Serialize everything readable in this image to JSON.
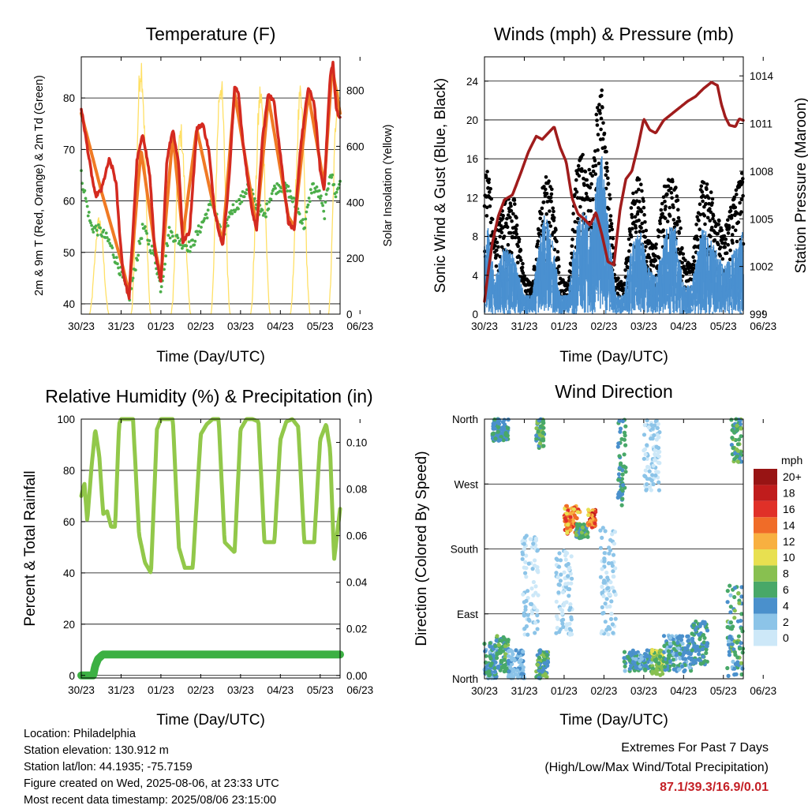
{
  "panels": {
    "temperature": {
      "title": "Temperature (F)",
      "ylabel_left": "2m & 9m T (Red, Orange) & 2m Td (Green)",
      "ylabel_right": "Solar Insolation (Yellow)",
      "xlabel": "Time (Day/UTC)"
    },
    "winds": {
      "title": "Winds (mph) & Pressure (mb)",
      "ylabel_left": "Sonic Wind & Gust (Blue, Black)",
      "ylabel_right": "Station Pressure (Maroon)",
      "xlabel": "Time (Day/UTC)"
    },
    "humidity": {
      "title": "Relative Humidity (%) & Precipitation (in)",
      "ylabel_left": "Percent & Total Rainfall",
      "xlabel": "Time (Day/UTC)"
    },
    "direction": {
      "title": "Wind Direction",
      "ylabel_left": "Direction (Colored By Speed)",
      "xlabel": "Time (Day/UTC)",
      "legend_title": "mph"
    }
  },
  "info": {
    "location": "Location: Philadelphia",
    "elevation": "Station elevation: 130.912 m",
    "latlon": "Station lat/lon: 44.1935; -75.7159",
    "created": "Figure created on Wed, 2025-08-06, at 23:33 UTC",
    "recent": "Most recent data timestamp: 2025/08/06 23:15:00"
  },
  "extremes": {
    "heading": "Extremes For Past 7 Days",
    "subheading": "(High/Low/Max Wind/Total Precipitation)",
    "values": "87.1/39.3/16.9/0.01"
  },
  "colors": {
    "temp2m": "#d42a20",
    "temp9m": "#f07a24",
    "dewpoint": "#4cae4a",
    "insolation": "#ffe066",
    "gust": "#000000",
    "wind": "#4a90d0",
    "pressure": "#a01c1c",
    "rh": "#92c84a",
    "precip": "#3cb043",
    "speed_scale": [
      "#cde8f8",
      "#8cc4e8",
      "#4a90cc",
      "#48a868",
      "#88c050",
      "#e8e050",
      "#f8b040",
      "#f06c28",
      "#e03028",
      "#c01c1c",
      "#981414"
    ]
  },
  "chart_data": [
    {
      "type": "line",
      "name": "temperature",
      "x_tick_labels": [
        "30/23",
        "31/23",
        "01/23",
        "02/23",
        "03/23",
        "04/23",
        "05/23",
        "06/23"
      ],
      "x_range_days": [
        0,
        6.5
      ],
      "y_left": {
        "range": [
          38,
          88
        ],
        "ticks": [
          40,
          50,
          60,
          70,
          80
        ]
      },
      "y_right": {
        "range": [
          0,
          920
        ],
        "ticks": [
          0,
          200,
          400,
          600,
          800
        ]
      },
      "series": [
        {
          "role": "2m T",
          "color_key": "temp2m",
          "axis": "left",
          "x": [
            0,
            0.12,
            0.22,
            0.35,
            0.5,
            0.7,
            0.8,
            0.88,
            0.95,
            1.05,
            1.2,
            1.4,
            1.55,
            1.72,
            1.85,
            2.0,
            2.15,
            2.3,
            2.45,
            2.55,
            2.72,
            2.9,
            3.05,
            3.2,
            3.35,
            3.55,
            3.7,
            3.85,
            3.95,
            4.05,
            4.25,
            4.4,
            4.55,
            4.7,
            4.85,
            5.0,
            5.2,
            5.35,
            5.5,
            5.7,
            5.85,
            6.0,
            6.1,
            6.2,
            6.25,
            6.32,
            6.4,
            6.5
          ],
          "y": [
            78,
            72,
            67,
            61,
            62,
            68,
            66,
            63,
            55,
            46,
            41,
            68,
            73,
            65,
            50,
            44,
            68,
            74,
            67,
            52,
            54,
            74,
            75,
            70,
            58,
            51,
            63,
            82,
            81,
            72,
            60,
            54,
            72,
            81,
            79,
            69,
            56,
            54,
            70,
            82,
            79,
            66,
            62,
            77,
            84,
            87,
            78,
            76
          ]
        },
        {
          "role": "9m T",
          "color_key": "temp9m",
          "axis": "left",
          "x": [
            0,
            0.5,
            1.05,
            1.2,
            1.5,
            1.85,
            2.0,
            2.3,
            2.55,
            2.9,
            3.35,
            3.55,
            3.85,
            4.4,
            4.7,
            5.2,
            5.35,
            5.7,
            6.1,
            6.3,
            6.5
          ],
          "y": [
            77,
            62,
            47,
            42,
            70,
            51,
            45,
            73,
            53,
            74,
            58,
            52,
            81,
            55,
            80,
            57,
            55,
            81,
            63,
            86,
            77
          ]
        },
        {
          "role": "2m Td",
          "color_key": "dewpoint",
          "axis": "left",
          "x": [
            0,
            0.12,
            0.25,
            0.5,
            0.7,
            1.0,
            1.2,
            1.35,
            1.55,
            1.7,
            1.85,
            2.0,
            2.2,
            2.5,
            2.75,
            3.0,
            3.3,
            3.55,
            3.75,
            4.0,
            4.2,
            4.4,
            4.6,
            4.8,
            5.0,
            5.2,
            5.45,
            5.6,
            5.8,
            6.0,
            6.1,
            6.25,
            6.4,
            6.5
          ],
          "y": [
            65,
            60,
            55,
            54,
            52,
            46,
            41,
            47,
            55,
            52,
            49,
            43,
            54,
            52,
            51,
            55,
            60,
            52,
            58,
            60,
            63,
            59,
            57,
            62,
            63,
            62,
            58,
            55,
            63,
            61,
            57,
            66,
            61,
            64
          ]
        },
        {
          "role": "Solar Insolation",
          "color_key": "insolation",
          "axis": "right",
          "peaks_x": [
            0.45,
            1.5,
            2.5,
            3.5,
            4.5,
            5.5,
            6.45
          ],
          "peaks_y": [
            330,
            880,
            640,
            820,
            780,
            760,
            800
          ]
        }
      ]
    },
    {
      "type": "scatter",
      "name": "winds",
      "x_tick_labels": [
        "30/23",
        "31/23",
        "01/23",
        "02/23",
        "03/23",
        "04/23",
        "05/23",
        "06/23"
      ],
      "x_range_days": [
        0,
        6.5
      ],
      "y_left": {
        "range": [
          0,
          26.5
        ],
        "ticks": [
          0,
          4,
          8,
          12,
          16,
          20,
          24
        ]
      },
      "y_right": {
        "range": [
          999,
          1015.2
        ],
        "ticks": [
          999,
          1002,
          1005,
          1008,
          1011,
          1014
        ]
      },
      "series": [
        {
          "role": "Gust",
          "color_key": "gust",
          "axis": "left",
          "envelope_x": [
            0,
            0.1,
            0.25,
            0.5,
            0.75,
            1.0,
            1.2,
            1.5,
            1.7,
            1.9,
            2.1,
            2.3,
            2.5,
            2.7,
            2.85,
            2.95,
            3.1,
            3.3,
            3.5,
            3.7,
            3.9,
            4.1,
            4.3,
            4.55,
            4.8,
            5.0,
            5.2,
            5.45,
            5.7,
            6.0,
            6.2,
            6.5
          ],
          "envelope_max": [
            14,
            16,
            8,
            12,
            12,
            4,
            3,
            15,
            13,
            4,
            3,
            15,
            17,
            14,
            23,
            24,
            15,
            4,
            3,
            12,
            15,
            8,
            7,
            14,
            14,
            6,
            5,
            14,
            13,
            8,
            12,
            15
          ]
        },
        {
          "role": "Sonic Wind",
          "color_key": "wind",
          "axis": "left",
          "envelope_x": [
            0,
            0.1,
            0.25,
            0.5,
            0.75,
            1.0,
            1.2,
            1.5,
            1.7,
            1.9,
            2.1,
            2.3,
            2.5,
            2.7,
            2.85,
            2.95,
            3.1,
            3.3,
            3.5,
            3.7,
            3.9,
            4.1,
            4.3,
            4.55,
            4.8,
            5.0,
            5.2,
            5.45,
            5.7,
            6.0,
            6.2,
            6.5
          ],
          "envelope_max": [
            8,
            9,
            4,
            7,
            6,
            2,
            2,
            11,
            8,
            2,
            2,
            9,
            11,
            9,
            15,
            17,
            10,
            2,
            2,
            7,
            9,
            5,
            4,
            9,
            9,
            3,
            3,
            9,
            8,
            5,
            6,
            9
          ]
        },
        {
          "role": "Station Pressure",
          "color_key": "pressure",
          "axis": "right",
          "x": [
            0,
            0.1,
            0.2,
            0.35,
            0.5,
            0.7,
            0.9,
            1.1,
            1.3,
            1.45,
            1.6,
            1.75,
            1.9,
            2.05,
            2.2,
            2.35,
            2.5,
            2.65,
            2.8,
            2.95,
            3.1,
            3.25,
            3.4,
            3.55,
            3.7,
            3.85,
            4.0,
            4.15,
            4.3,
            4.5,
            4.7,
            4.9,
            5.1,
            5.3,
            5.5,
            5.7,
            5.85,
            5.95,
            6.05,
            6.15,
            6.3,
            6.4,
            6.5
          ],
          "y": [
            999.8,
            1001.8,
            1003.5,
            1005.2,
            1006.2,
            1006.5,
            1007.8,
            1009.2,
            1010.2,
            1010.0,
            1010.4,
            1010.8,
            1009.5,
            1008.6,
            1006.3,
            1005.3,
            1005.0,
            1004.6,
            1005.4,
            1004.0,
            1002.3,
            1002.1,
            1005.5,
            1007.5,
            1008.0,
            1009.5,
            1011.3,
            1010.6,
            1010.4,
            1011.2,
            1011.6,
            1012.0,
            1012.4,
            1012.7,
            1013.2,
            1013.6,
            1013.4,
            1012.2,
            1011.4,
            1010.9,
            1010.8,
            1011.3,
            1011.2
          ]
        }
      ]
    },
    {
      "type": "line",
      "name": "humidity",
      "x_tick_labels": [
        "30/23",
        "31/23",
        "01/23",
        "02/23",
        "03/23",
        "04/23",
        "05/23",
        "06/23"
      ],
      "x_range_days": [
        0,
        6.5
      ],
      "y_left": {
        "range": [
          -1,
          100
        ],
        "ticks": [
          0,
          20,
          40,
          60,
          80,
          100
        ]
      },
      "y_right": {
        "range": [
          -0.0011,
          0.11
        ],
        "ticks": [
          0.0,
          0.02,
          0.04,
          0.06,
          0.08,
          0.1
        ],
        "tick_labels": [
          "0.00",
          "0.02",
          "0.04",
          "0.06",
          "0.08",
          "0.10"
        ]
      },
      "series": [
        {
          "role": "Relative Humidity",
          "color_key": "rh",
          "axis": "left",
          "x": [
            0,
            0.08,
            0.15,
            0.25,
            0.35,
            0.45,
            0.55,
            0.65,
            0.75,
            0.85,
            0.95,
            1.0,
            1.1,
            1.3,
            1.45,
            1.6,
            1.75,
            1.9,
            2.0,
            2.15,
            2.3,
            2.45,
            2.6,
            2.8,
            3.0,
            3.15,
            3.3,
            3.45,
            3.6,
            3.85,
            4.0,
            4.15,
            4.3,
            4.45,
            4.6,
            4.85,
            5.0,
            5.15,
            5.3,
            5.45,
            5.6,
            5.85,
            6.0,
            6.15,
            6.25,
            6.35,
            6.5
          ],
          "y": [
            70,
            75,
            60,
            80,
            96,
            86,
            63,
            64,
            58,
            58,
            98,
            100,
            100,
            100,
            55,
            44,
            40,
            96,
            100,
            100,
            100,
            50,
            42,
            42,
            94,
            98,
            100,
            100,
            52,
            48,
            96,
            100,
            100,
            99,
            52,
            52,
            92,
            99,
            100,
            97,
            52,
            52,
            92,
            98,
            88,
            45,
            65
          ]
        },
        {
          "role": "Precipitation",
          "color_key": "precip",
          "axis": "right",
          "x": [
            0,
            0.3,
            0.35,
            0.42,
            0.48,
            0.55,
            6.5
          ],
          "y": [
            0,
            0,
            0.004,
            0.007,
            0.008,
            0.009,
            0.009
          ]
        }
      ]
    },
    {
      "type": "scatter",
      "name": "wind-direction",
      "x_tick_labels": [
        "30/23",
        "31/23",
        "01/23",
        "02/23",
        "03/23",
        "04/23",
        "05/23",
        "06/23"
      ],
      "x_range_days": [
        0,
        6.5
      ],
      "y_tick_labels": [
        "North",
        "East",
        "South",
        "West",
        "North"
      ],
      "y_range_deg": [
        0,
        360
      ],
      "legend_values": [
        "0",
        "2",
        "4",
        "6",
        "8",
        "10",
        "12",
        "14",
        "16",
        "18",
        "20+"
      ],
      "clusters": [
        {
          "x": [
            0.0,
            0.3
          ],
          "deg": [
            0,
            50
          ],
          "speed": [
            2,
            6
          ]
        },
        {
          "x": [
            0.3,
            0.6
          ],
          "deg": [
            10,
            60
          ],
          "speed": [
            4,
            8
          ]
        },
        {
          "x": [
            0.6,
            1.0
          ],
          "deg": [
            0,
            40
          ],
          "speed": [
            1,
            4
          ]
        },
        {
          "x": [
            0.2,
            0.6
          ],
          "deg": [
            330,
            360
          ],
          "speed": [
            3,
            6
          ]
        },
        {
          "x": [
            1.3,
            1.5
          ],
          "deg": [
            320,
            360
          ],
          "speed": [
            4,
            9
          ]
        },
        {
          "x": [
            1.3,
            1.6
          ],
          "deg": [
            0,
            40
          ],
          "speed": [
            3,
            8
          ]
        },
        {
          "x": [
            0.95,
            1.35
          ],
          "deg": [
            60,
            200
          ],
          "speed": [
            0,
            2
          ]
        },
        {
          "x": [
            2.0,
            2.4
          ],
          "deg": [
            200,
            240
          ],
          "speed": [
            9,
            17
          ]
        },
        {
          "x": [
            2.3,
            2.6
          ],
          "deg": [
            195,
            215
          ],
          "speed": [
            4,
            8
          ]
        },
        {
          "x": [
            2.6,
            2.8
          ],
          "deg": [
            210,
            235
          ],
          "speed": [
            10,
            18
          ]
        },
        {
          "x": [
            2.9,
            3.3
          ],
          "deg": [
            60,
            210
          ],
          "speed": [
            0,
            3
          ]
        },
        {
          "x": [
            3.35,
            3.55
          ],
          "deg": [
            240,
            360
          ],
          "speed": [
            3,
            7
          ]
        },
        {
          "x": [
            3.5,
            4.2
          ],
          "deg": [
            10,
            40
          ],
          "speed": [
            2,
            6
          ]
        },
        {
          "x": [
            4.2,
            4.5
          ],
          "deg": [
            5,
            40
          ],
          "speed": [
            6,
            10
          ]
        },
        {
          "x": [
            4.5,
            5.2
          ],
          "deg": [
            10,
            60
          ],
          "speed": [
            2,
            6
          ]
        },
        {
          "x": [
            5.2,
            5.6
          ],
          "deg": [
            20,
            80
          ],
          "speed": [
            3,
            7
          ]
        },
        {
          "x": [
            6.1,
            6.5
          ],
          "deg": [
            0,
            130
          ],
          "speed": [
            2,
            8
          ]
        },
        {
          "x": [
            6.2,
            6.45
          ],
          "deg": [
            300,
            360
          ],
          "speed": [
            4,
            8
          ]
        },
        {
          "x": [
            1.8,
            2.2
          ],
          "deg": [
            60,
            180
          ],
          "speed": [
            0,
            2
          ]
        },
        {
          "x": [
            4.0,
            4.4
          ],
          "deg": [
            260,
            360
          ],
          "speed": [
            0,
            2
          ]
        }
      ]
    }
  ]
}
